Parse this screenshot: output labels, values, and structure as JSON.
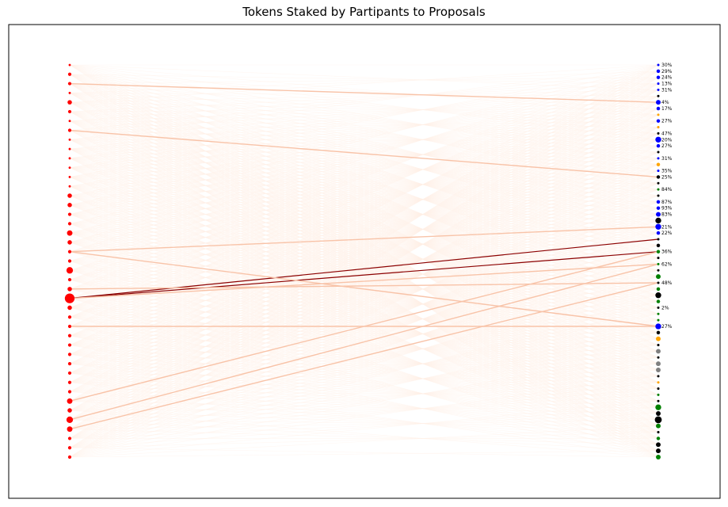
{
  "chart_data": {
    "type": "network",
    "title": "Tokens Staked by Partipants to Proposals",
    "xlabel": "",
    "ylabel": "",
    "axes_ticks": false,
    "legend": "none",
    "colors": {
      "participant": "#ff0000",
      "edge_light": "#fff0e8",
      "edge_medium": "#f8c3a8",
      "edge_strong": "#8b0000",
      "proposal_blue": "#0000ff",
      "proposal_orange": "#ffa500",
      "proposal_black": "#000000",
      "proposal_green": "#008000",
      "proposal_gray": "#808080"
    },
    "participants": [
      {
        "s": 1
      },
      {
        "s": 2
      },
      {
        "s": 2
      },
      {
        "s": 1
      },
      {
        "s": 3
      },
      {
        "s": 2
      },
      {
        "s": 1
      },
      {
        "s": 2
      },
      {
        "s": 1
      },
      {
        "s": 1
      },
      {
        "s": 1
      },
      {
        "s": 1
      },
      {
        "s": 1
      },
      {
        "s": 1
      },
      {
        "s": 3
      },
      {
        "s": 3
      },
      {
        "s": 2
      },
      {
        "s": 2
      },
      {
        "s": 4
      },
      {
        "s": 3
      },
      {
        "s": 2
      },
      {
        "s": 2
      },
      {
        "s": 5
      },
      {
        "s": 2
      },
      {
        "s": 3
      },
      {
        "s": 8
      },
      {
        "s": 3
      },
      {
        "s": 2
      },
      {
        "s": 2
      },
      {
        "s": 2
      },
      {
        "s": 2
      },
      {
        "s": 2
      },
      {
        "s": 2
      },
      {
        "s": 2
      },
      {
        "s": 2
      },
      {
        "s": 2
      },
      {
        "s": 4
      },
      {
        "s": 3
      },
      {
        "s": 5
      },
      {
        "s": 4
      },
      {
        "s": 2
      },
      {
        "s": 2
      },
      {
        "s": 2
      }
    ],
    "proposals": [
      {
        "c": "blue",
        "s": 1,
        "label": "30%"
      },
      {
        "c": "blue",
        "s": 2,
        "label": "29%"
      },
      {
        "c": "blue",
        "s": 2,
        "label": "24%"
      },
      {
        "c": "blue",
        "s": 1,
        "label": "13%"
      },
      {
        "c": "blue",
        "s": 1,
        "label": "31%"
      },
      {
        "c": "black",
        "s": 1,
        "label": ""
      },
      {
        "c": "blue",
        "s": 3,
        "label": "4%"
      },
      {
        "c": "blue",
        "s": 2,
        "label": "17%"
      },
      {
        "c": "orange",
        "s": 1,
        "label": ""
      },
      {
        "c": "blue",
        "s": 2,
        "label": "27%"
      },
      {
        "c": "orange",
        "s": 1,
        "label": ""
      },
      {
        "c": "black",
        "s": 1,
        "label": "47%"
      },
      {
        "c": "blue",
        "s": 4,
        "label": "20%"
      },
      {
        "c": "blue",
        "s": 2,
        "label": "27%"
      },
      {
        "c": "black",
        "s": 1,
        "label": ""
      },
      {
        "c": "blue",
        "s": 1,
        "label": "31%"
      },
      {
        "c": "orange",
        "s": 2,
        "label": ""
      },
      {
        "c": "blue",
        "s": 1,
        "label": "35%"
      },
      {
        "c": "black",
        "s": 2,
        "label": "25%"
      },
      {
        "c": "black",
        "s": 1,
        "label": ""
      },
      {
        "c": "green",
        "s": 1,
        "label": "84%"
      },
      {
        "c": "black",
        "s": 1,
        "label": ""
      },
      {
        "c": "blue",
        "s": 2,
        "label": "87%"
      },
      {
        "c": "blue",
        "s": 2,
        "label": "93%"
      },
      {
        "c": "blue",
        "s": 3,
        "label": "83%"
      },
      {
        "c": "black",
        "s": 4,
        "label": ""
      },
      {
        "c": "blue",
        "s": 4,
        "label": "21%"
      },
      {
        "c": "blue",
        "s": 2,
        "label": "22%"
      },
      {
        "c": "black",
        "s": 1,
        "label": ""
      },
      {
        "c": "black",
        "s": 2,
        "label": ""
      },
      {
        "c": "green",
        "s": 2,
        "label": "36%"
      },
      {
        "c": "black",
        "s": 1,
        "label": ""
      },
      {
        "c": "green",
        "s": 1,
        "label": "62%"
      },
      {
        "c": "black",
        "s": 1,
        "label": ""
      },
      {
        "c": "green",
        "s": 3,
        "label": ""
      },
      {
        "c": "black",
        "s": 1,
        "label": "48%"
      },
      {
        "c": "green",
        "s": 2,
        "label": ""
      },
      {
        "c": "black",
        "s": 4,
        "label": ""
      },
      {
        "c": "green",
        "s": 2,
        "label": ""
      },
      {
        "c": "black",
        "s": 1,
        "label": "2%"
      },
      {
        "c": "green",
        "s": 1,
        "label": ""
      },
      {
        "c": "green",
        "s": 1,
        "label": ""
      },
      {
        "c": "blue",
        "s": 4,
        "label": "27%"
      },
      {
        "c": "black",
        "s": 2,
        "label": ""
      },
      {
        "c": "orange",
        "s": 3,
        "label": ""
      },
      {
        "c": "black",
        "s": 1,
        "label": ""
      },
      {
        "c": "gray",
        "s": 3,
        "label": ""
      },
      {
        "c": "black",
        "s": 1,
        "label": ""
      },
      {
        "c": "gray",
        "s": 3,
        "label": ""
      },
      {
        "c": "gray",
        "s": 3,
        "label": ""
      },
      {
        "c": "black",
        "s": 1,
        "label": ""
      },
      {
        "c": "orange",
        "s": 1,
        "label": ""
      },
      {
        "c": "black",
        "s": 1,
        "label": ""
      },
      {
        "c": "green",
        "s": 1,
        "label": ""
      },
      {
        "c": "black",
        "s": 1,
        "label": ""
      },
      {
        "c": "green",
        "s": 4,
        "label": ""
      },
      {
        "c": "black",
        "s": 3,
        "label": ""
      },
      {
        "c": "black",
        "s": 5,
        "label": ""
      },
      {
        "c": "green",
        "s": 3,
        "label": ""
      },
      {
        "c": "black",
        "s": 1,
        "label": ""
      },
      {
        "c": "green",
        "s": 2,
        "label": ""
      },
      {
        "c": "black",
        "s": 3,
        "label": ""
      },
      {
        "c": "black",
        "s": 3,
        "label": ""
      },
      {
        "c": "green",
        "s": 3,
        "label": ""
      }
    ],
    "strong_edges": [
      {
        "from": 25,
        "to": 28,
        "w": "strong"
      },
      {
        "from": 25,
        "to": 30,
        "w": "strong"
      },
      {
        "from": 20,
        "to": 42,
        "w": "medium"
      },
      {
        "from": 20,
        "to": 26,
        "w": "medium"
      },
      {
        "from": 25,
        "to": 32,
        "w": "medium"
      },
      {
        "from": 24,
        "to": 35,
        "w": "medium"
      },
      {
        "from": 36,
        "to": 30,
        "w": "medium"
      },
      {
        "from": 38,
        "to": 32,
        "w": "medium"
      },
      {
        "from": 39,
        "to": 35,
        "w": "medium"
      },
      {
        "from": 28,
        "to": 42,
        "w": "medium"
      },
      {
        "from": 2,
        "to": 6,
        "w": "medium"
      },
      {
        "from": 7,
        "to": 18,
        "w": "medium"
      }
    ]
  }
}
